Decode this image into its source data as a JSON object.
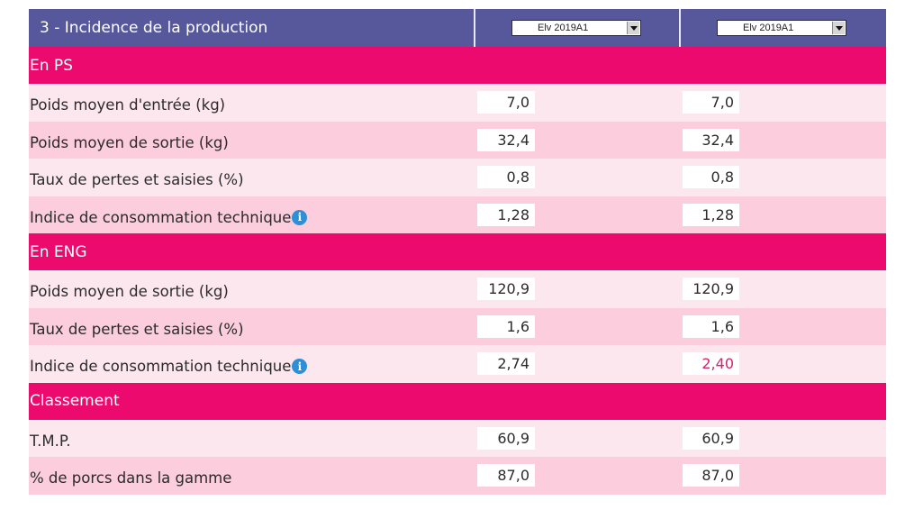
{
  "header": {
    "title": "3 - Incidence de la production",
    "select_1": "Elv 2019A1",
    "select_2": "Elv 2019A1"
  },
  "sections": {
    "ps": "En PS",
    "eng": "En ENG",
    "classement": "Classement"
  },
  "rows": [
    {
      "label": "Poids moyen d'entrée (kg)",
      "v1": "7,0",
      "v2": "7,0"
    },
    {
      "label": "Poids moyen de sortie (kg)",
      "v1": "32,4",
      "v2": "32,4"
    },
    {
      "label": "Taux de pertes et saisies (%)",
      "v1": "0,8",
      "v2": "0,8"
    },
    {
      "label": "Indice de consommation technique",
      "v1": "1,28",
      "v2": "1,28",
      "info": "info-icon"
    },
    {
      "label": "Poids moyen de sortie (kg)",
      "v1": "120,9",
      "v2": "120,9"
    },
    {
      "label": "Taux de pertes et saisies (%)",
      "v1": "1,6",
      "v2": "1,6"
    },
    {
      "label": "Indice de consommation technique",
      "v1": "2,74",
      "v2": "2,40",
      "info": "info-icon"
    },
    {
      "label": "T.M.P.",
      "v1": "60,9",
      "v2": "60,9"
    },
    {
      "label": "% de porcs dans la gamme",
      "v1": "87,0",
      "v2": "87,0"
    }
  ],
  "colors": {
    "header_bg": "#57589b",
    "section_bg": "#ec0a6e",
    "row_light": "#fde7ef",
    "row_dark": "#fbcddd",
    "highlight_value": "#d0246d",
    "info_icon": "#2d8fd5"
  }
}
